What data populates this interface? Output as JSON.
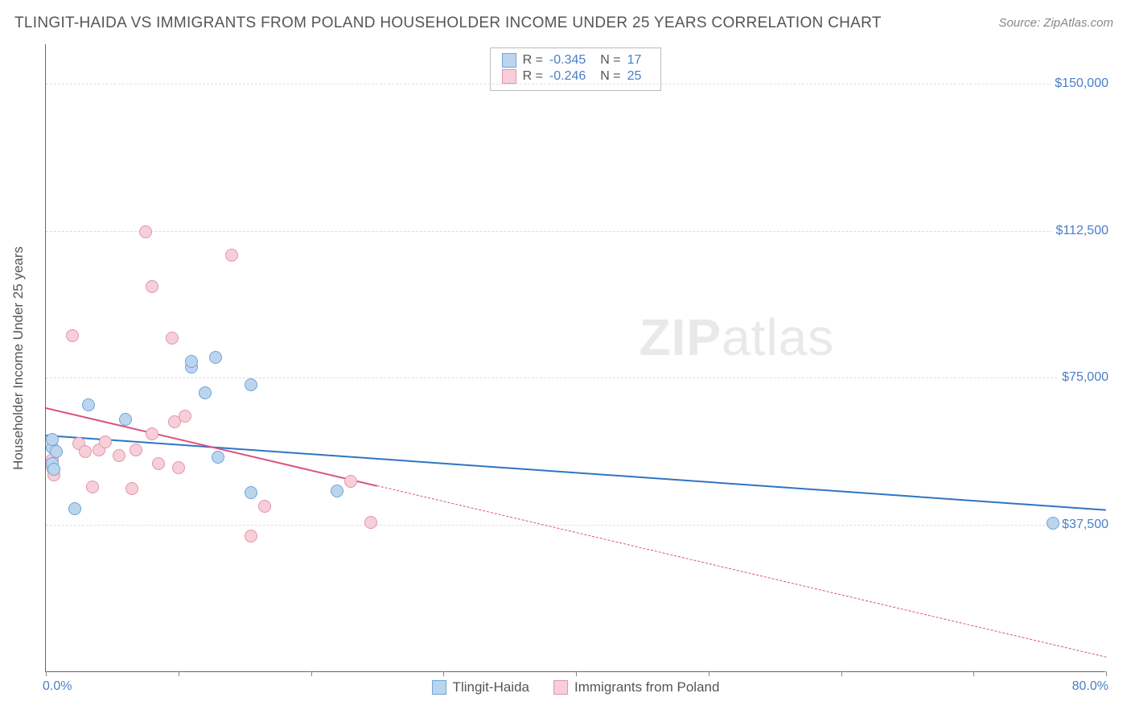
{
  "title": "TLINGIT-HAIDA VS IMMIGRANTS FROM POLAND HOUSEHOLDER INCOME UNDER 25 YEARS CORRELATION CHART",
  "source": "Source: ZipAtlas.com",
  "watermark": {
    "bold": "ZIP",
    "rest": "atlas"
  },
  "ylabel": "Householder Income Under 25 years",
  "chart": {
    "type": "scatter",
    "xlim": [
      0,
      80
    ],
    "ylim": [
      0,
      160000
    ],
    "x_tick_label_left": "0.0%",
    "x_tick_label_right": "80.0%",
    "x_ticks_at": [
      0,
      10,
      20,
      30,
      40,
      50,
      60,
      70,
      80
    ],
    "y_ticks": [
      {
        "v": 37500,
        "label": "$37,500"
      },
      {
        "v": 75000,
        "label": "$75,000"
      },
      {
        "v": 112500,
        "label": "$112,500"
      },
      {
        "v": 150000,
        "label": "$150,000"
      }
    ],
    "grid_color": "#dddddd",
    "background_color": "#ffffff",
    "point_radius": 8,
    "point_border_width": 1.5,
    "series": [
      {
        "name": "Tlingit-Haida",
        "fill": "#bcd5ee",
        "stroke": "#6fa3d8",
        "line_color": "#2e74c4",
        "R": "-0.345",
        "N": "17",
        "trend": {
          "x1": 0,
          "y1": 60500,
          "x2": 80,
          "y2": 41500,
          "solid_until_x": 80
        },
        "points": [
          {
            "x": 0.5,
            "y": 57000
          },
          {
            "x": 0.5,
            "y": 53000
          },
          {
            "x": 0.6,
            "y": 51500
          },
          {
            "x": 0.5,
            "y": 59000
          },
          {
            "x": 0.8,
            "y": 56000
          },
          {
            "x": 2.2,
            "y": 41500
          },
          {
            "x": 3.2,
            "y": 68000
          },
          {
            "x": 6.0,
            "y": 64200
          },
          {
            "x": 11.0,
            "y": 77500
          },
          {
            "x": 11.0,
            "y": 79000
          },
          {
            "x": 12.8,
            "y": 80000
          },
          {
            "x": 12.0,
            "y": 71000
          },
          {
            "x": 13.0,
            "y": 54500
          },
          {
            "x": 15.5,
            "y": 73000
          },
          {
            "x": 15.5,
            "y": 45500
          },
          {
            "x": 22.0,
            "y": 46000
          },
          {
            "x": 76.0,
            "y": 37800
          }
        ]
      },
      {
        "name": "Immigrants from Poland",
        "fill": "#f6cfd9",
        "stroke": "#e593ab",
        "line_color": "#d9547e",
        "R": "-0.246",
        "N": "25",
        "trend": {
          "x1": 0,
          "y1": 67500,
          "x2": 80,
          "y2": 4000,
          "solid_until_x": 25
        },
        "points": [
          {
            "x": 0.5,
            "y": 52000
          },
          {
            "x": 0.5,
            "y": 54000
          },
          {
            "x": 0.6,
            "y": 50000
          },
          {
            "x": 2.0,
            "y": 85500
          },
          {
            "x": 2.5,
            "y": 58000
          },
          {
            "x": 3.0,
            "y": 56000
          },
          {
            "x": 3.5,
            "y": 47000
          },
          {
            "x": 4.0,
            "y": 56500
          },
          {
            "x": 4.5,
            "y": 58500
          },
          {
            "x": 5.5,
            "y": 55000
          },
          {
            "x": 6.5,
            "y": 46500
          },
          {
            "x": 6.8,
            "y": 56500
          },
          {
            "x": 7.5,
            "y": 112000
          },
          {
            "x": 8.0,
            "y": 98000
          },
          {
            "x": 8.0,
            "y": 60500
          },
          {
            "x": 8.5,
            "y": 53000
          },
          {
            "x": 9.5,
            "y": 85000
          },
          {
            "x": 9.7,
            "y": 63500
          },
          {
            "x": 10.0,
            "y": 52000
          },
          {
            "x": 10.5,
            "y": 65000
          },
          {
            "x": 14.0,
            "y": 106000
          },
          {
            "x": 15.5,
            "y": 34500
          },
          {
            "x": 16.5,
            "y": 42000
          },
          {
            "x": 23.0,
            "y": 48500
          },
          {
            "x": 24.5,
            "y": 38000
          }
        ]
      }
    ]
  },
  "legend": {
    "items": [
      {
        "label": "Tlingit-Haida",
        "fill": "#bcd5ee",
        "stroke": "#6fa3d8"
      },
      {
        "label": "Immigrants from Poland",
        "fill": "#f6cfd9",
        "stroke": "#e593ab"
      }
    ]
  }
}
